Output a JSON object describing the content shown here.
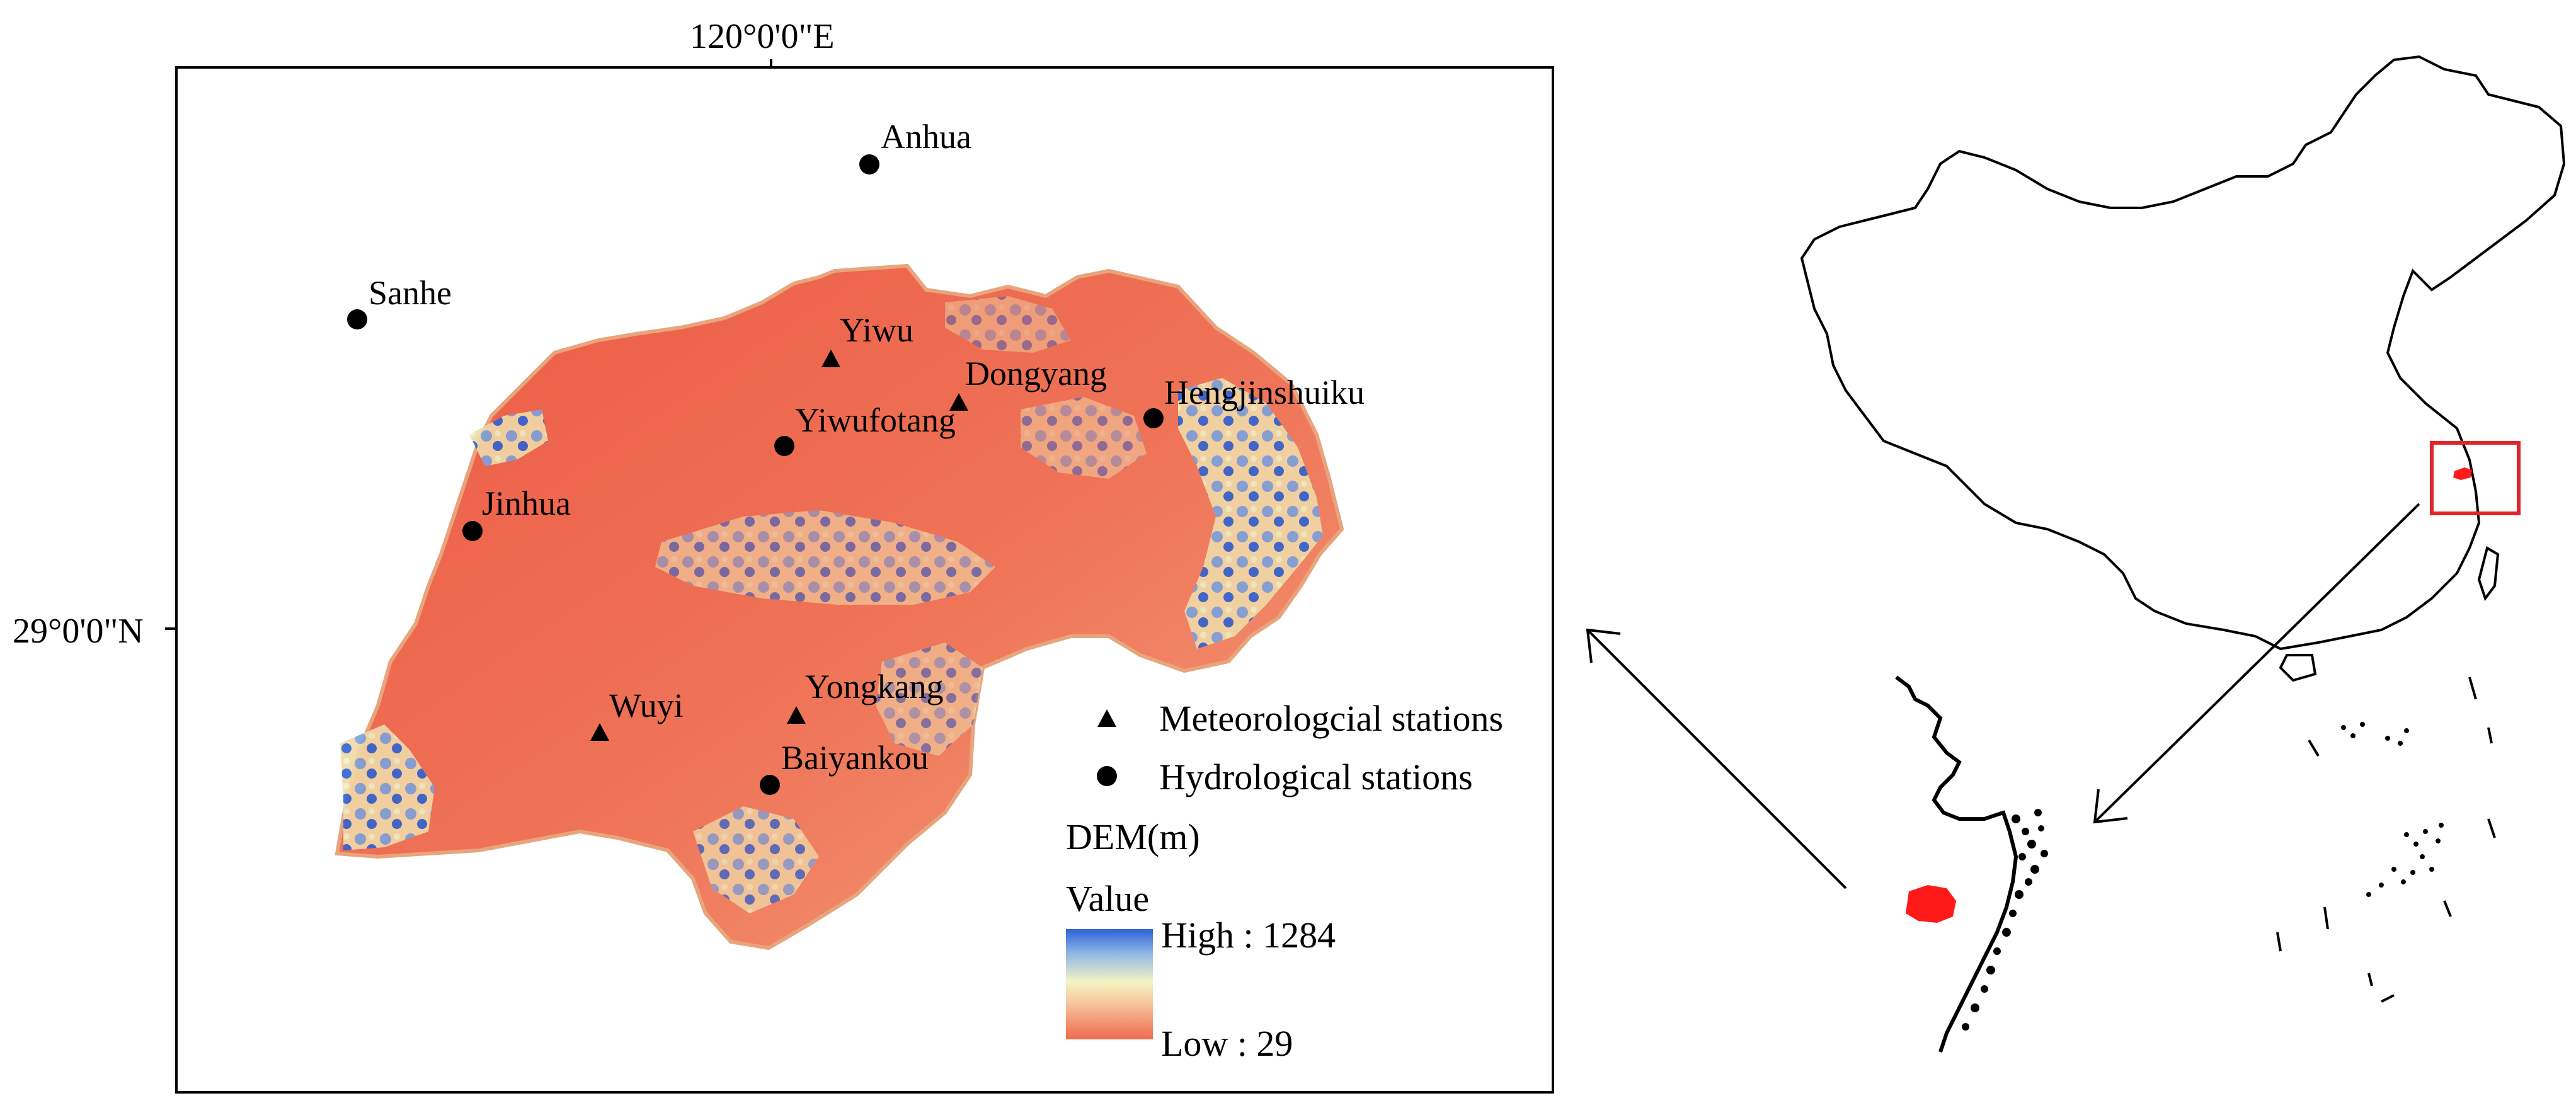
{
  "axes": {
    "longitude_label": "120°0'0\"E",
    "latitude_label": "29°0'0\"N"
  },
  "stations": {
    "hydrological": [
      "Anhua",
      "Sanhe",
      "Hengjinshuiku",
      "Yiwufotang",
      "Jinhua",
      "Baiyankou"
    ],
    "meteorological": [
      "Yiwu",
      "Dongyang",
      "Wuyi",
      "Yongkang"
    ]
  },
  "legend": {
    "meteorological": "Meteorologcial stations",
    "hydrological": "Hydrological stations",
    "dem_title": "DEM(m)",
    "value_title": "Value",
    "high": "High : 1284",
    "low": "Low : 29"
  },
  "colors": {
    "low": "#ef6a4d",
    "mid": "#f4f5c3",
    "high": "#2d63d6",
    "highlight": "#ff1a1a"
  }
}
